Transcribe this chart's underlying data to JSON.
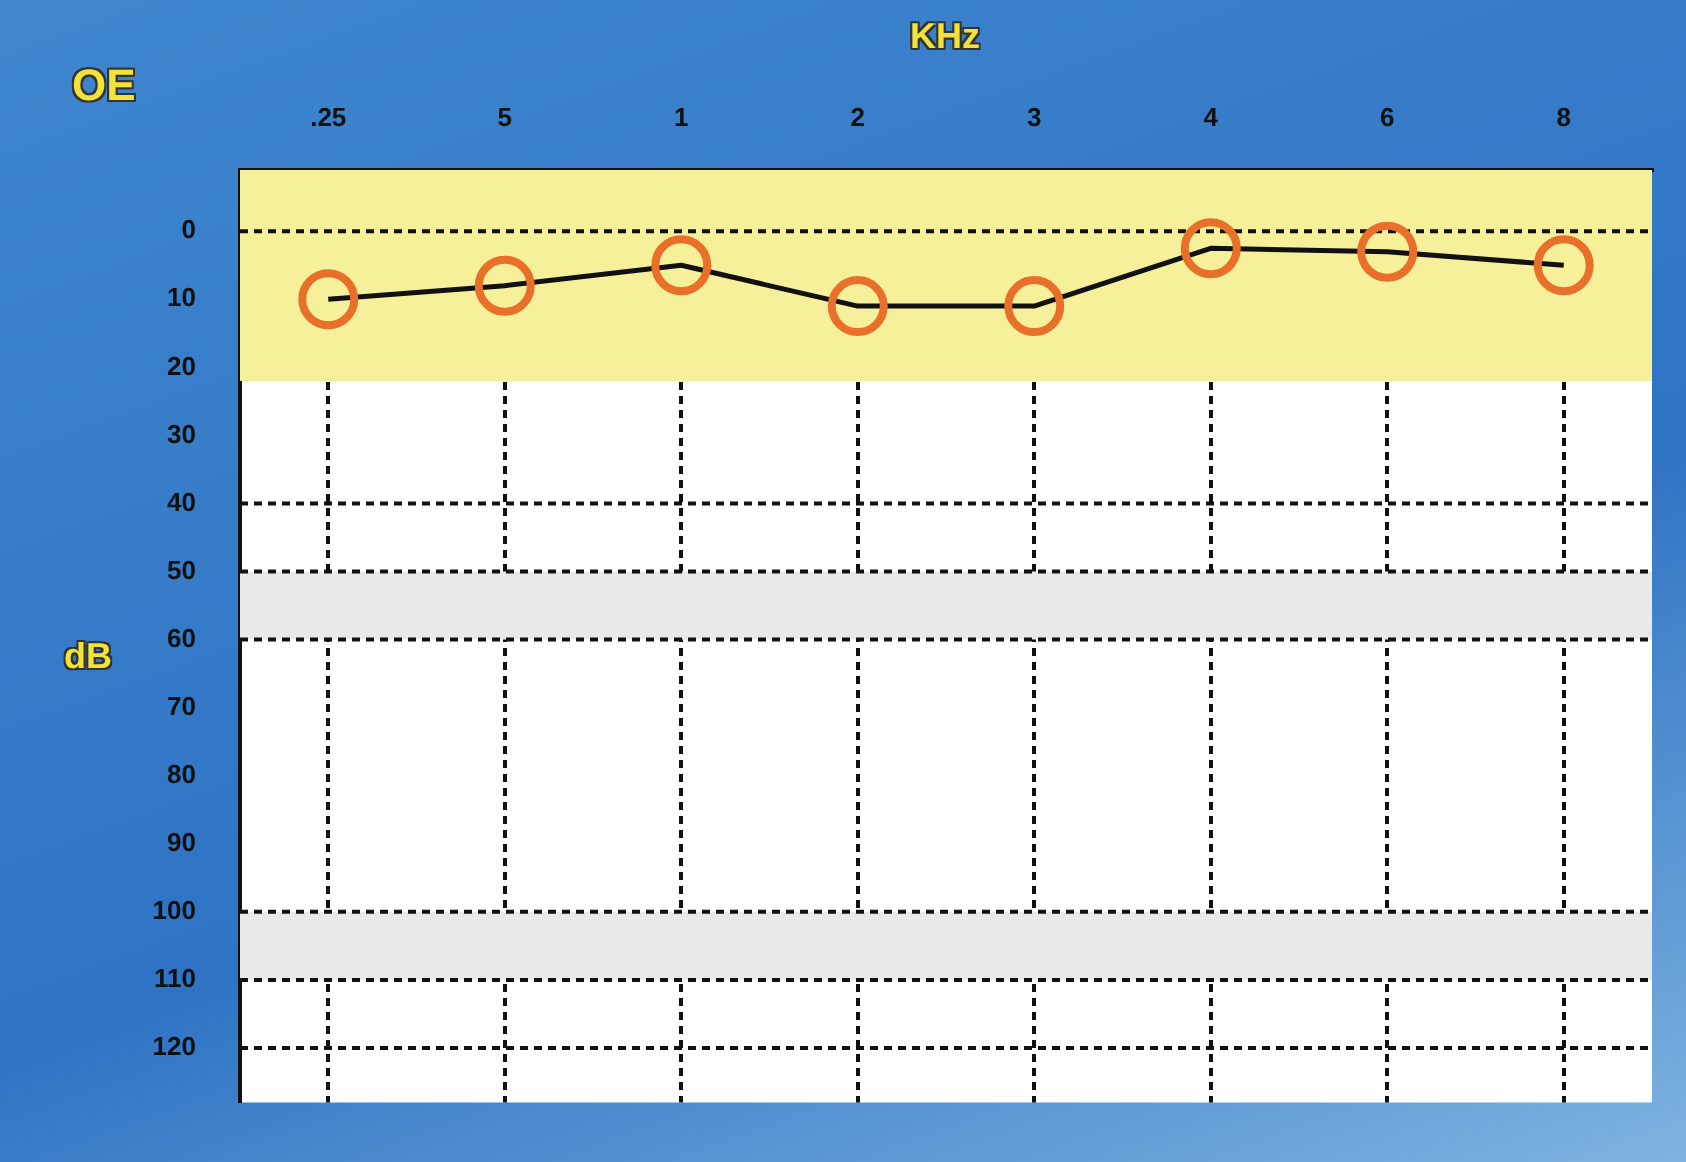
{
  "chart_data": {
    "type": "line",
    "title": "OE",
    "xlabel": "KHz",
    "ylabel": "dB",
    "categories": [
      ".25",
      "5",
      "1",
      "2",
      "3",
      "4",
      "6",
      "8"
    ],
    "series": [
      {
        "color": "#111111",
        "values": [
          10,
          8,
          5,
          11,
          11,
          2.5,
          3,
          5
        ]
      }
    ],
    "marker": "circle",
    "line_style": "solid",
    "grid": "x",
    "legend": false,
    "ylim": [
      128,
      -9
    ],
    "yticks": [
      0,
      10,
      20,
      30,
      40,
      50,
      60,
      70,
      80,
      90,
      100,
      110,
      120
    ],
    "bands": [
      {
        "axis": "y",
        "from": -9,
        "to": 22,
        "color": "#f7f09a"
      },
      {
        "axis": "y",
        "from": 50,
        "to": 60,
        "color": "#e9e9e9"
      },
      {
        "axis": "y",
        "from": 100,
        "to": 110,
        "color": "#e9e9e9"
      }
    ],
    "ref_lines": [
      {
        "axis": "y",
        "value": 0,
        "line_style": "dashed"
      },
      {
        "axis": "y",
        "value": 40,
        "line_style": "dashed"
      },
      {
        "axis": "y",
        "value": 50,
        "line_style": "dashed"
      },
      {
        "axis": "y",
        "value": 60,
        "line_style": "dashed"
      },
      {
        "axis": "y",
        "value": 100,
        "line_style": "dashed"
      },
      {
        "axis": "y",
        "value": 110,
        "line_style": "dashed"
      },
      {
        "axis": "y",
        "value": 120,
        "line_style": "dashed"
      }
    ]
  }
}
